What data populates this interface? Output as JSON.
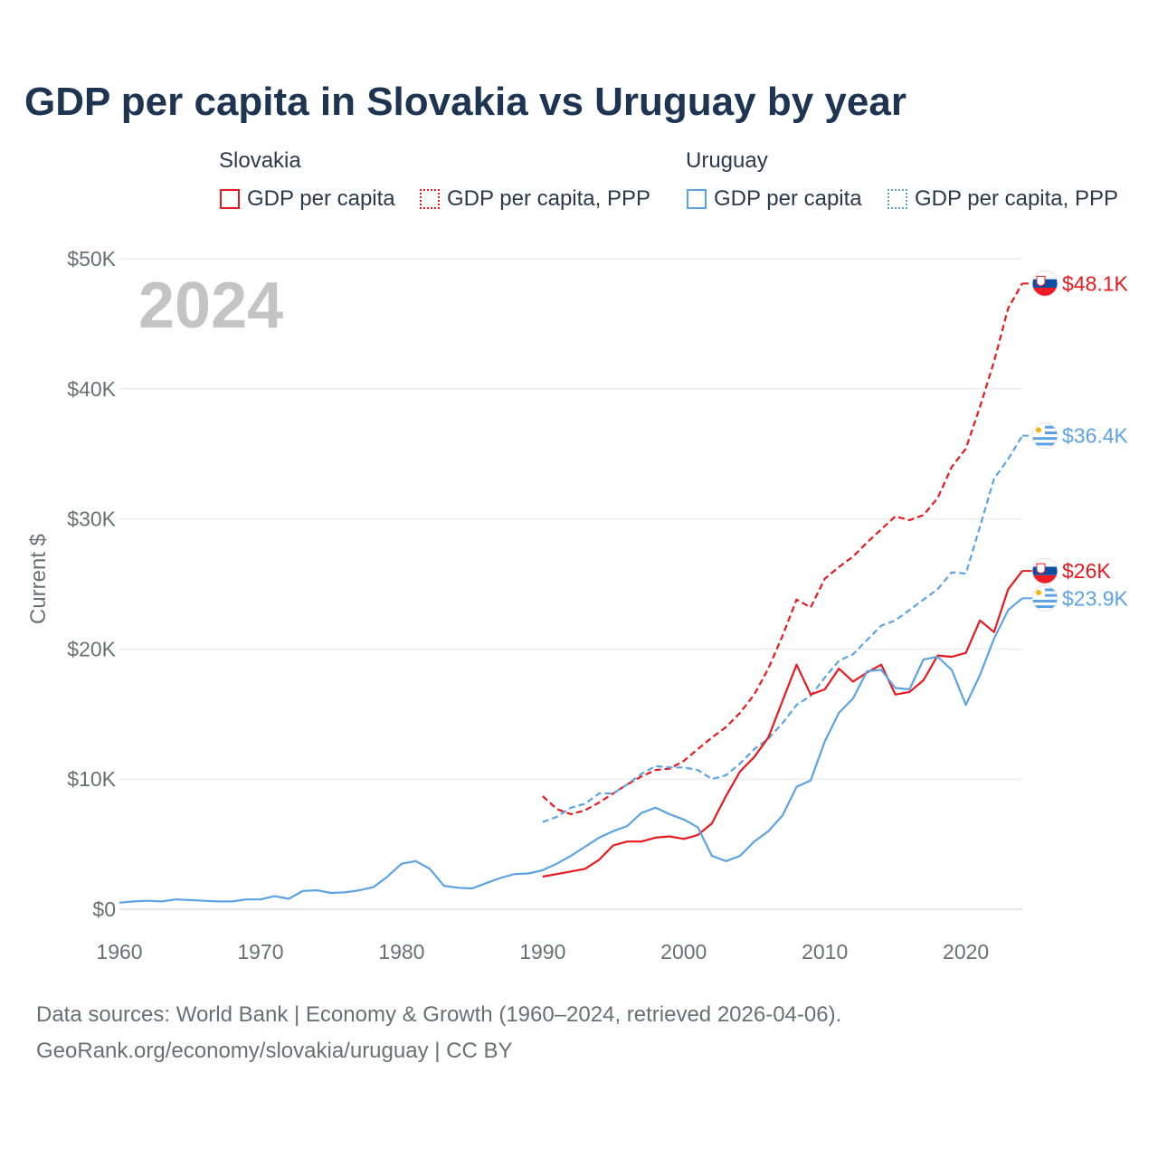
{
  "title": "GDP per capita in Slovakia vs Uruguay by year",
  "legend": {
    "groups": [
      {
        "country": "Slovakia",
        "items": [
          "GDP per capita",
          "GDP per capita, PPP"
        ]
      },
      {
        "country": "Uruguay",
        "items": [
          "GDP per capita",
          "GDP per capita, PPP"
        ]
      }
    ]
  },
  "colors": {
    "slovakia": "#e8191f",
    "uruguay": "#5da3e3"
  },
  "chart_data": {
    "type": "line",
    "title": "GDP per capita in Slovakia vs Uruguay by year",
    "year_label": "2024",
    "ylabel": "Current $",
    "xlabel": "",
    "xlim": [
      1960,
      2024
    ],
    "ylim": [
      0,
      50000
    ],
    "x_ticks": [
      "1960",
      "1970",
      "1980",
      "1990",
      "2000",
      "2010",
      "2020"
    ],
    "y_ticks": [
      "$0",
      "$10K",
      "$20K",
      "$30K",
      "$40K",
      "$50K"
    ],
    "grid": true,
    "series": [
      {
        "name": "Slovakia GDP per capita, PPP",
        "country": "Slovakia",
        "style": "dashed",
        "x": [
          1990,
          1991,
          1992,
          1993,
          1994,
          1995,
          1996,
          1997,
          1998,
          1999,
          2000,
          2001,
          2002,
          2003,
          2004,
          2005,
          2006,
          2007,
          2008,
          2009,
          2010,
          2011,
          2012,
          2013,
          2014,
          2015,
          2016,
          2017,
          2018,
          2019,
          2020,
          2021,
          2022,
          2023,
          2024
        ],
        "values": [
          8700,
          7700,
          7300,
          7600,
          8200,
          8900,
          9600,
          10200,
          10700,
          10800,
          11400,
          12300,
          13200,
          14000,
          15100,
          16500,
          18500,
          21000,
          23800,
          23200,
          25400,
          26300,
          27100,
          28200,
          29200,
          30200,
          29900,
          30300,
          31600,
          34000,
          35400,
          38600,
          42100,
          46200,
          48100
        ],
        "end_label": "$48.1K"
      },
      {
        "name": "Uruguay GDP per capita, PPP",
        "country": "Uruguay",
        "style": "dashed",
        "x": [
          1990,
          1991,
          1992,
          1993,
          1994,
          1995,
          1996,
          1997,
          1998,
          1999,
          2000,
          2001,
          2002,
          2003,
          2004,
          2005,
          2006,
          2007,
          2008,
          2009,
          2010,
          2011,
          2012,
          2013,
          2014,
          2015,
          2016,
          2017,
          2018,
          2019,
          2020,
          2021,
          2022,
          2023,
          2024
        ],
        "values": [
          6700,
          7100,
          7800,
          8100,
          8900,
          8900,
          9600,
          10400,
          11000,
          10900,
          10900,
          10700,
          10000,
          10300,
          11200,
          12300,
          13100,
          14300,
          15700,
          16400,
          17800,
          19100,
          19600,
          20700,
          21800,
          22200,
          23000,
          23800,
          24600,
          25900,
          25800,
          29400,
          33100,
          34600,
          36400
        ],
        "end_label": "$36.4K"
      },
      {
        "name": "Slovakia GDP per capita",
        "country": "Slovakia",
        "style": "solid",
        "x": [
          1990,
          1991,
          1992,
          1993,
          1994,
          1995,
          1996,
          1997,
          1998,
          1999,
          2000,
          2001,
          2002,
          2003,
          2004,
          2005,
          2006,
          2007,
          2008,
          2009,
          2010,
          2011,
          2012,
          2013,
          2014,
          2015,
          2016,
          2017,
          2018,
          2019,
          2020,
          2021,
          2022,
          2023,
          2024
        ],
        "values": [
          2500,
          2700,
          2900,
          3100,
          3800,
          4900,
          5200,
          5200,
          5500,
          5600,
          5400,
          5700,
          6600,
          8700,
          10600,
          11700,
          13200,
          16000,
          18800,
          16500,
          16900,
          18500,
          17500,
          18200,
          18800,
          16500,
          16700,
          17600,
          19500,
          19400,
          19700,
          22200,
          21300,
          24600,
          26000
        ],
        "end_label": "$26K"
      },
      {
        "name": "Uruguay GDP per capita",
        "country": "Uruguay",
        "style": "solid",
        "x": [
          1960,
          1961,
          1962,
          1963,
          1964,
          1965,
          1966,
          1967,
          1968,
          1969,
          1970,
          1971,
          1972,
          1973,
          1974,
          1975,
          1976,
          1977,
          1978,
          1979,
          1980,
          1981,
          1982,
          1983,
          1984,
          1985,
          1986,
          1987,
          1988,
          1989,
          1990,
          1991,
          1992,
          1993,
          1994,
          1995,
          1996,
          1997,
          1998,
          1999,
          2000,
          2001,
          2002,
          2003,
          2004,
          2005,
          2006,
          2007,
          2008,
          2009,
          2010,
          2011,
          2012,
          2013,
          2014,
          2015,
          2016,
          2017,
          2018,
          2019,
          2020,
          2021,
          2022,
          2023,
          2024
        ],
        "values": [
          500,
          600,
          650,
          600,
          750,
          700,
          650,
          600,
          600,
          750,
          750,
          1000,
          800,
          1400,
          1450,
          1250,
          1300,
          1450,
          1700,
          2500,
          3500,
          3700,
          3100,
          1800,
          1650,
          1600,
          2000,
          2400,
          2700,
          2750,
          3000,
          3500,
          4100,
          4800,
          5500,
          6000,
          6400,
          7400,
          7800,
          7300,
          6900,
          6300,
          4100,
          3700,
          4100,
          5200,
          6000,
          7200,
          9400,
          9900,
          12900,
          15100,
          16200,
          18300,
          18400,
          17000,
          16900,
          19200,
          19400,
          18400,
          15700,
          18000,
          20800,
          23000,
          23900
        ],
        "end_label": "$23.9K"
      }
    ]
  },
  "footer": {
    "line1": "Data sources: World Bank | Economy & Growth (1960–2024, retrieved 2026-04-06).",
    "line2": "GeoRank.org/economy/slovakia/uruguay | CC BY"
  }
}
